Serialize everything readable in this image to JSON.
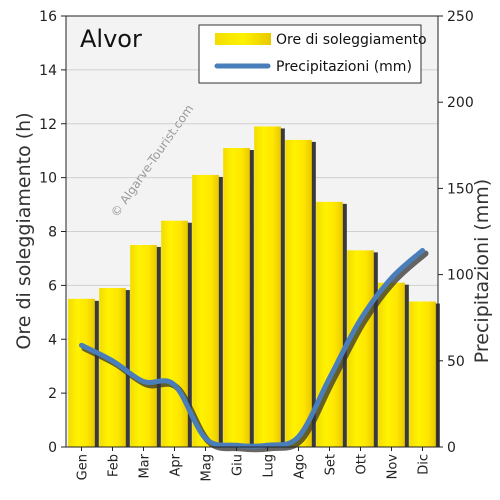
{
  "chart_data": {
    "type": "bar",
    "title": "Alvor",
    "watermark": "© Algarve-Tourist.com",
    "categories": [
      "Gen",
      "Feb",
      "Mar",
      "Apr",
      "Mag",
      "Giu",
      "Lug",
      "Ago",
      "Set",
      "Ott",
      "Nov",
      "Dic"
    ],
    "series": [
      {
        "name": "Ore di soleggiamento",
        "type": "bar",
        "axis": "left",
        "color": "#ffee00",
        "values": [
          5.5,
          5.9,
          7.5,
          8.4,
          10.1,
          11.1,
          11.9,
          11.4,
          9.1,
          7.3,
          6.1,
          5.4
        ]
      },
      {
        "name": "Precipitazioni (mm)",
        "type": "line",
        "axis": "right",
        "color": "#4a7ebb",
        "values": [
          59,
          50,
          38,
          36,
          5,
          1,
          1,
          6,
          40,
          74,
          98,
          114
        ]
      }
    ],
    "ylabel": "Ore di soleggiamento (h)",
    "ylim": [
      0,
      16
    ],
    "yticks": [
      "0",
      "2",
      "4",
      "6",
      "8",
      "10",
      "12",
      "14",
      "16"
    ],
    "y2label": "Precipitazioni (mm)",
    "y2lim": [
      0,
      250
    ],
    "y2ticks": [
      "0",
      "50",
      "100",
      "150",
      "200",
      "250"
    ],
    "grid": true,
    "legend_position": "top-right"
  }
}
